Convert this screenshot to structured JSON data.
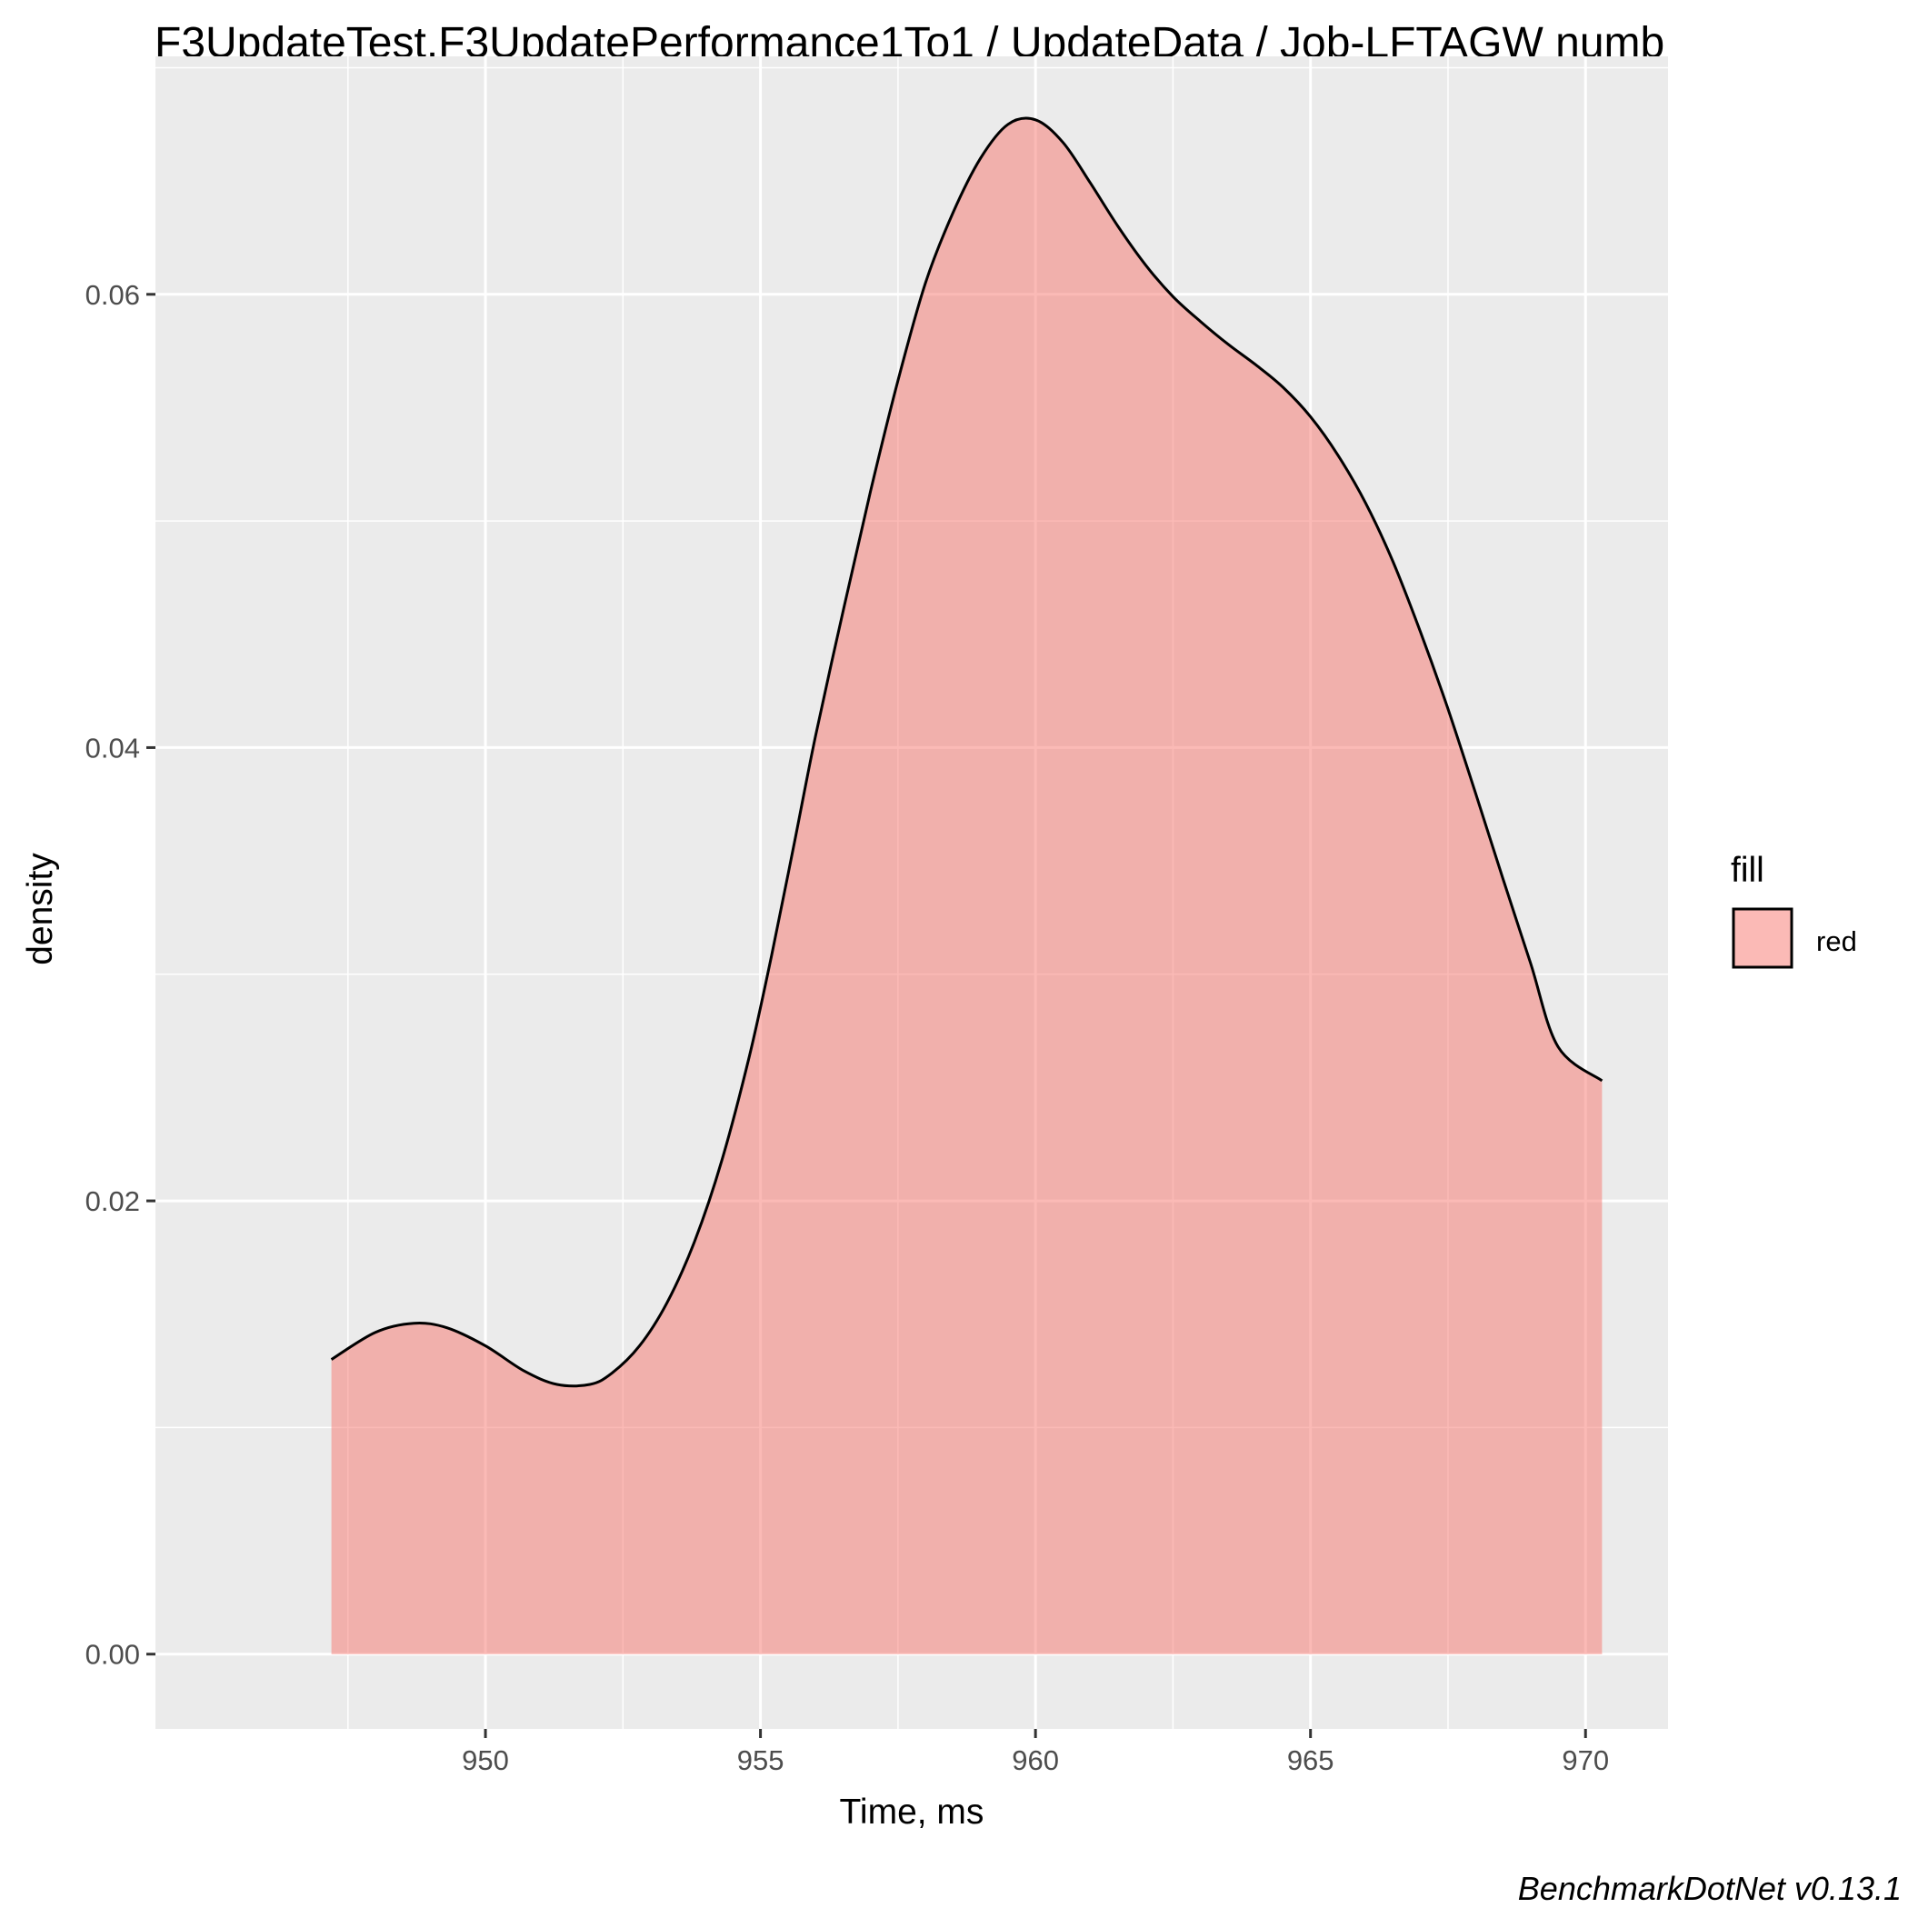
{
  "chart_data": {
    "type": "area",
    "title": "F3UpdateTest.F3UpdatePerformance1To1 / UpdateData / Job-LFTAGW numb",
    "xlabel": "Time, ms",
    "ylabel": "density",
    "xlim": [
      944.0,
      971.5
    ],
    "ylim": [
      -0.0033,
      0.0705
    ],
    "x_ticks": [
      950,
      955,
      960,
      965,
      970
    ],
    "x_tick_labels": [
      "950",
      "955",
      "960",
      "965",
      "970"
    ],
    "y_ticks": [
      0.0,
      0.02,
      0.04,
      0.06
    ],
    "y_tick_labels": [
      "0.00",
      "0.02",
      "0.04",
      "0.06"
    ],
    "grid": true,
    "legend": {
      "title": "fill",
      "position": "right",
      "entries": [
        "red"
      ]
    },
    "fill_color": "#f8766d",
    "fill_opacity": 0.5,
    "line_color": "#000000",
    "panel_background": "#ebebeb",
    "series": [
      {
        "x": [
          947.2,
          948.0,
          948.7,
          949.3,
          950.0,
          950.7,
          951.3,
          951.9,
          952.3,
          952.8,
          953.3,
          953.8,
          954.3,
          954.8,
          955.2,
          955.6,
          956.0,
          956.5,
          957.0,
          957.5,
          958.0,
          958.5,
          959.0,
          959.5,
          960.0,
          960.5,
          961.0,
          961.5,
          962.0,
          962.5,
          963.0,
          963.5,
          964.0,
          964.5,
          965.0,
          965.5,
          966.0,
          966.5,
          967.0,
          967.5,
          968.0,
          968.5,
          969.0,
          969.5,
          970.3
        ],
        "y": [
          0.013,
          0.0142,
          0.0146,
          0.0144,
          0.0136,
          0.0125,
          0.0119,
          0.0119,
          0.0124,
          0.0136,
          0.0155,
          0.0182,
          0.0218,
          0.0264,
          0.0308,
          0.0356,
          0.0405,
          0.046,
          0.0513,
          0.0562,
          0.0605,
          0.0636,
          0.066,
          0.0675,
          0.0677,
          0.0667,
          0.0649,
          0.063,
          0.0613,
          0.0599,
          0.0588,
          0.0578,
          0.0569,
          0.0559,
          0.0546,
          0.0529,
          0.0508,
          0.0482,
          0.0451,
          0.0417,
          0.038,
          0.0342,
          0.0305,
          0.0268,
          0.0253
        ]
      }
    ]
  },
  "caption": "BenchmarkDotNet v0.13.1"
}
